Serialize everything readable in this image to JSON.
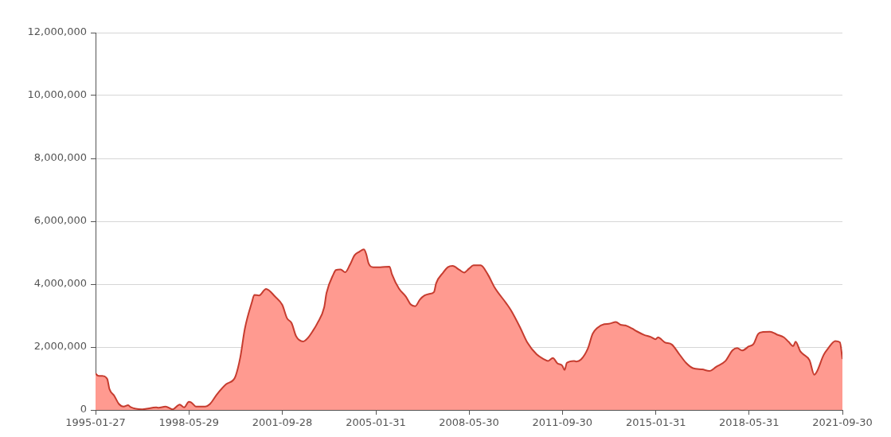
{
  "chart_data": {
    "type": "area",
    "x": [
      "1995-01-27",
      "1995-02-28",
      "1995-04-28",
      "1995-06-28",
      "1995-07-28",
      "1995-09-28",
      "1995-11-28",
      "1996-01-28",
      "1996-03-28",
      "1996-04-28",
      "1996-09-28",
      "1997-03-28",
      "1997-04-28",
      "1997-07-28",
      "1997-10-28",
      "1998-01-28",
      "1998-03-28",
      "1998-05-28",
      "1998-06-28",
      "1998-08-28",
      "1998-12-28",
      "1999-02-28",
      "1999-05-28",
      "1999-09-28",
      "1999-12-28",
      "2000-01-28",
      "2000-03-28",
      "2000-05-28",
      "2000-08-28",
      "2000-09-28",
      "2000-11-28",
      "2001-02-28",
      "2001-06-28",
      "2001-09-28",
      "2001-11-28",
      "2002-01-28",
      "2002-03-28",
      "2002-06-28",
      "2002-08-28",
      "2002-10-28",
      "2002-12-28",
      "2003-03-28",
      "2003-04-28",
      "2003-07-28",
      "2003-08-28",
      "2003-10-28",
      "2003-12-28",
      "2004-02-28",
      "2004-04-28",
      "2004-06-28",
      "2004-08-28",
      "2004-09-28",
      "2004-10-28",
      "2004-12-28",
      "2005-03-28",
      "2005-07-28",
      "2005-08-28",
      "2005-11-28",
      "2006-02-28",
      "2006-04-28",
      "2006-06-28",
      "2006-08-28",
      "2006-10-28",
      "2006-12-28",
      "2007-02-28",
      "2007-03-28",
      "2007-06-28",
      "2007-08-28",
      "2007-10-28",
      "2008-01-28",
      "2008-03-28",
      "2008-05-28",
      "2008-07-28",
      "2008-10-28",
      "2009-01-28",
      "2009-04-28",
      "2009-09-28",
      "2009-11-28",
      "2010-03-28",
      "2010-06-28",
      "2010-10-28",
      "2011-01-28",
      "2011-03-28",
      "2011-05-28",
      "2011-07-28",
      "2011-09-28",
      "2011-10-28",
      "2011-11-28",
      "2012-02-28",
      "2012-03-28",
      "2012-05-28",
      "2012-08-28",
      "2012-10-28",
      "2012-12-28",
      "2013-03-28",
      "2013-05-28",
      "2013-08-28",
      "2013-10-28",
      "2013-12-28",
      "2014-03-28",
      "2014-05-28",
      "2014-08-28",
      "2014-11-28",
      "2015-01-28",
      "2015-02-28",
      "2015-05-28",
      "2015-08-28",
      "2015-11-28",
      "2016-02-28",
      "2016-05-28",
      "2016-09-28",
      "2016-12-28",
      "2017-03-28",
      "2017-07-28",
      "2017-10-28",
      "2017-12-28",
      "2018-02-28",
      "2018-05-28",
      "2018-07-28",
      "2018-09-28",
      "2018-11-28",
      "2019-02-28",
      "2019-05-28",
      "2019-08-28",
      "2019-10-28",
      "2019-12-28",
      "2020-01-28",
      "2020-03-28",
      "2020-04-28",
      "2020-07-28",
      "2020-09-28",
      "2020-10-28",
      "2021-01-28",
      "2021-03-28",
      "2021-06-28",
      "2021-08-28",
      "2021-09-30"
    ],
    "values": [
      1160000,
      1090000,
      1080000,
      990000,
      660000,
      450000,
      190000,
      110000,
      150000,
      90000,
      20000,
      80000,
      70000,
      110000,
      20000,
      170000,
      80000,
      260000,
      240000,
      110000,
      110000,
      190000,
      490000,
      820000,
      950000,
      1080000,
      1660000,
      2590000,
      3430000,
      3660000,
      3640000,
      3850000,
      3600000,
      3340000,
      2920000,
      2760000,
      2340000,
      2180000,
      2290000,
      2500000,
      2750000,
      3260000,
      3720000,
      4320000,
      4450000,
      4470000,
      4380000,
      4620000,
      4920000,
      5030000,
      5110000,
      4950000,
      4660000,
      4540000,
      4540000,
      4560000,
      4320000,
      3860000,
      3600000,
      3360000,
      3300000,
      3510000,
      3640000,
      3690000,
      3750000,
      4030000,
      4370000,
      4540000,
      4580000,
      4450000,
      4370000,
      4490000,
      4600000,
      4600000,
      4320000,
      3900000,
      3390000,
      3170000,
      2620000,
      2150000,
      1770000,
      1620000,
      1560000,
      1650000,
      1480000,
      1410000,
      1270000,
      1500000,
      1560000,
      1540000,
      1600000,
      1960000,
      2420000,
      2610000,
      2730000,
      2740000,
      2800000,
      2710000,
      2690000,
      2590000,
      2500000,
      2390000,
      2320000,
      2250000,
      2310000,
      2150000,
      2080000,
      1790000,
      1500000,
      1330000,
      1290000,
      1240000,
      1370000,
      1560000,
      1900000,
      1970000,
      1890000,
      2020000,
      2100000,
      2420000,
      2480000,
      2490000,
      2400000,
      2310000,
      2170000,
      2030000,
      2170000,
      1870000,
      1790000,
      1580000,
      1120000,
      1200000,
      1750000,
      1960000,
      2190000,
      2150000,
      1620000
    ],
    "color": "#ff9a90",
    "xlim": [
      "1995-01-27",
      "2021-09-30"
    ],
    "xticks": [
      "1995-01-27",
      "1998-05-29",
      "2001-09-28",
      "2005-01-31",
      "2008-05-30",
      "2011-09-30",
      "2015-01-31",
      "2018-05-31",
      "2021-09-30"
    ],
    "ylim": [
      0,
      12000000
    ],
    "yticks": [
      0,
      {
        "value": 2000000,
        "label": "2,000,000"
      },
      {
        "value": 4000000,
        "label": "4,000,000"
      },
      {
        "value": 6000000,
        "label": "6,000,000"
      },
      {
        "value": 8000000,
        "label": "8,000,000"
      },
      {
        "value": 10000000,
        "label": "10,000,000"
      },
      {
        "value": 12000000,
        "label": "12,000,000"
      }
    ],
    "grid": "y"
  }
}
